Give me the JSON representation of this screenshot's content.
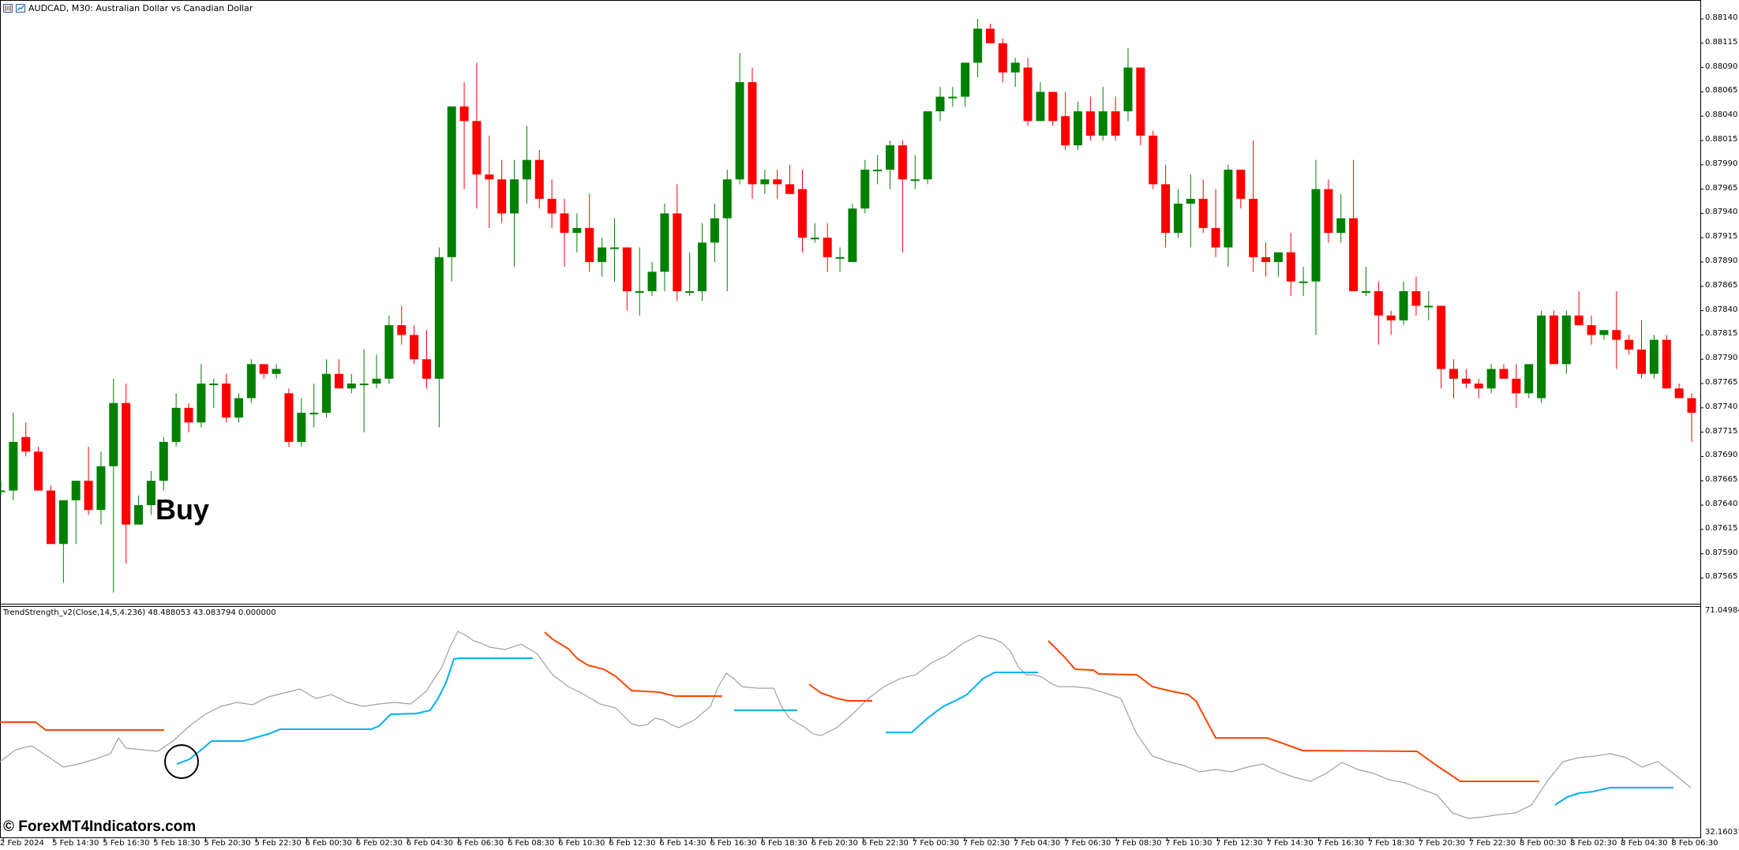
{
  "chart_title": "AUDCAD, M30:  Australian Dollar vs Canadian Dollar",
  "indicator_label": "TrendStrength_v2(Close,14,5,4.236) 48.488053 43.083794 0.000000",
  "annotation_text": "Buy",
  "watermark": "© ForexMT4Indicators.com",
  "price_axis": [
    "0.88140",
    "0.88115",
    "0.88090",
    "0.88065",
    "0.88040",
    "0.88015",
    "0.87990",
    "0.87965",
    "0.87940",
    "0.87915",
    "0.87890",
    "0.87865",
    "0.87840",
    "0.87815",
    "0.87790",
    "0.87765",
    "0.87740",
    "0.87715",
    "0.87690",
    "0.87665",
    "0.87640",
    "0.87615",
    "0.87590",
    "0.87565"
  ],
  "indicator_axis": [
    "71.049846",
    "32.160370"
  ],
  "time_axis": [
    "2 Feb 2024",
    "5 Feb 14:30",
    "5 Feb 16:30",
    "5 Feb 18:30",
    "5 Feb 20:30",
    "5 Feb 22:30",
    "6 Feb 00:30",
    "6 Feb 02:30",
    "6 Feb 04:30",
    "6 Feb 06:30",
    "6 Feb 08:30",
    "6 Feb 10:30",
    "6 Feb 12:30",
    "6 Feb 14:30",
    "6 Feb 16:30",
    "6 Feb 18:30",
    "6 Feb 20:30",
    "6 Feb 22:30",
    "7 Feb 00:30",
    "7 Feb 02:30",
    "7 Feb 04:30",
    "7 Feb 06:30",
    "7 Feb 08:30",
    "7 Feb 10:30",
    "7 Feb 12:30",
    "7 Feb 14:30",
    "7 Feb 16:30",
    "7 Feb 18:30",
    "7 Feb 20:30",
    "7 Feb 22:30",
    "8 Feb 00:30",
    "8 Feb 02:30",
    "8 Feb 04:30",
    "8 Feb 06:30"
  ],
  "colors": {
    "bull": "#008000",
    "bear": "#ff0000",
    "up_line": "#00b0f0",
    "down_line": "#ff4500",
    "strength_line": "#a0a0a0",
    "background": "#ffffff"
  },
  "chart_data": {
    "type": "candlestick",
    "symbol": "AUDCAD",
    "timeframe": "M30",
    "price_range": [
      0.8755,
      0.8815
    ],
    "candles": [
      {
        "o": 0.87655,
        "h": 0.87665,
        "l": 0.8765,
        "c": 0.87655
      },
      {
        "o": 0.87655,
        "h": 0.87735,
        "l": 0.87645,
        "c": 0.87705
      },
      {
        "o": 0.8771,
        "h": 0.87725,
        "l": 0.8769,
        "c": 0.87695
      },
      {
        "o": 0.87695,
        "h": 0.877,
        "l": 0.87655,
        "c": 0.87655
      },
      {
        "o": 0.87655,
        "h": 0.8766,
        "l": 0.876,
        "c": 0.876
      },
      {
        "o": 0.876,
        "h": 0.8764,
        "l": 0.8756,
        "c": 0.87645
      },
      {
        "o": 0.87645,
        "h": 0.87665,
        "l": 0.876,
        "c": 0.87665
      },
      {
        "o": 0.87665,
        "h": 0.877,
        "l": 0.8763,
        "c": 0.87635
      },
      {
        "o": 0.87635,
        "h": 0.87695,
        "l": 0.8762,
        "c": 0.8768
      },
      {
        "o": 0.8768,
        "h": 0.8777,
        "l": 0.8755,
        "c": 0.87745
      },
      {
        "o": 0.87745,
        "h": 0.87765,
        "l": 0.8758,
        "c": 0.8762
      },
      {
        "o": 0.8762,
        "h": 0.8765,
        "l": 0.8762,
        "c": 0.8764
      },
      {
        "o": 0.8764,
        "h": 0.87675,
        "l": 0.8763,
        "c": 0.87665
      },
      {
        "o": 0.87665,
        "h": 0.8771,
        "l": 0.87655,
        "c": 0.87705
      },
      {
        "o": 0.87705,
        "h": 0.87755,
        "l": 0.877,
        "c": 0.8774
      },
      {
        "o": 0.8774,
        "h": 0.87745,
        "l": 0.87715,
        "c": 0.87725
      },
      {
        "o": 0.87725,
        "h": 0.87785,
        "l": 0.8772,
        "c": 0.87765
      },
      {
        "o": 0.87765,
        "h": 0.8777,
        "l": 0.8774,
        "c": 0.87765
      },
      {
        "o": 0.87765,
        "h": 0.87775,
        "l": 0.87725,
        "c": 0.8773
      },
      {
        "o": 0.8773,
        "h": 0.87755,
        "l": 0.87725,
        "c": 0.8775
      },
      {
        "o": 0.8775,
        "h": 0.8779,
        "l": 0.87745,
        "c": 0.87785
      },
      {
        "o": 0.87785,
        "h": 0.87785,
        "l": 0.8777,
        "c": 0.87775
      },
      {
        "o": 0.87775,
        "h": 0.87785,
        "l": 0.8777,
        "c": 0.8778
      },
      {
        "o": 0.87755,
        "h": 0.8776,
        "l": 0.877,
        "c": 0.87705
      },
      {
        "o": 0.87705,
        "h": 0.8775,
        "l": 0.877,
        "c": 0.87735
      },
      {
        "o": 0.87735,
        "h": 0.87765,
        "l": 0.8772,
        "c": 0.87735
      },
      {
        "o": 0.87735,
        "h": 0.8779,
        "l": 0.8773,
        "c": 0.87775
      },
      {
        "o": 0.87775,
        "h": 0.8779,
        "l": 0.87765,
        "c": 0.8776
      },
      {
        "o": 0.8776,
        "h": 0.87775,
        "l": 0.87755,
        "c": 0.87765
      },
      {
        "o": 0.87765,
        "h": 0.878,
        "l": 0.87715,
        "c": 0.87765
      },
      {
        "o": 0.87765,
        "h": 0.87795,
        "l": 0.8776,
        "c": 0.8777
      },
      {
        "o": 0.8777,
        "h": 0.87835,
        "l": 0.87765,
        "c": 0.87825
      },
      {
        "o": 0.87825,
        "h": 0.87845,
        "l": 0.87805,
        "c": 0.87815
      },
      {
        "o": 0.87815,
        "h": 0.87825,
        "l": 0.87785,
        "c": 0.8779
      },
      {
        "o": 0.8779,
        "h": 0.8782,
        "l": 0.8776,
        "c": 0.8777
      },
      {
        "o": 0.8777,
        "h": 0.87905,
        "l": 0.8772,
        "c": 0.87895
      },
      {
        "o": 0.87895,
        "h": 0.8805,
        "l": 0.8787,
        "c": 0.8805
      },
      {
        "o": 0.8805,
        "h": 0.88075,
        "l": 0.87965,
        "c": 0.88035
      },
      {
        "o": 0.88035,
        "h": 0.88095,
        "l": 0.87945,
        "c": 0.8798
      },
      {
        "o": 0.8798,
        "h": 0.8802,
        "l": 0.87925,
        "c": 0.87975
      },
      {
        "o": 0.87975,
        "h": 0.87995,
        "l": 0.8793,
        "c": 0.8794
      },
      {
        "o": 0.8794,
        "h": 0.87995,
        "l": 0.87885,
        "c": 0.87975
      },
      {
        "o": 0.87975,
        "h": 0.8803,
        "l": 0.8795,
        "c": 0.87995
      },
      {
        "o": 0.87995,
        "h": 0.88005,
        "l": 0.87945,
        "c": 0.87955
      },
      {
        "o": 0.87955,
        "h": 0.87975,
        "l": 0.87925,
        "c": 0.8794
      },
      {
        "o": 0.8794,
        "h": 0.87955,
        "l": 0.87885,
        "c": 0.8792
      },
      {
        "o": 0.8792,
        "h": 0.8794,
        "l": 0.879,
        "c": 0.87925
      },
      {
        "o": 0.87925,
        "h": 0.8796,
        "l": 0.8788,
        "c": 0.8789
      },
      {
        "o": 0.8789,
        "h": 0.87915,
        "l": 0.87875,
        "c": 0.87905
      },
      {
        "o": 0.87905,
        "h": 0.87935,
        "l": 0.8787,
        "c": 0.87905
      },
      {
        "o": 0.87905,
        "h": 0.87905,
        "l": 0.8784,
        "c": 0.8786
      },
      {
        "o": 0.8786,
        "h": 0.87905,
        "l": 0.87835,
        "c": 0.8786
      },
      {
        "o": 0.8786,
        "h": 0.8789,
        "l": 0.87855,
        "c": 0.8788
      },
      {
        "o": 0.8788,
        "h": 0.8795,
        "l": 0.8786,
        "c": 0.8794
      },
      {
        "o": 0.8794,
        "h": 0.8797,
        "l": 0.8785,
        "c": 0.8786
      },
      {
        "o": 0.8786,
        "h": 0.879,
        "l": 0.87855,
        "c": 0.8786
      },
      {
        "o": 0.8786,
        "h": 0.8793,
        "l": 0.8785,
        "c": 0.8791
      },
      {
        "o": 0.8791,
        "h": 0.8795,
        "l": 0.8789,
        "c": 0.87935
      },
      {
        "o": 0.87935,
        "h": 0.87985,
        "l": 0.8786,
        "c": 0.87975
      },
      {
        "o": 0.87975,
        "h": 0.88105,
        "l": 0.8797,
        "c": 0.88075
      },
      {
        "o": 0.88075,
        "h": 0.8809,
        "l": 0.87955,
        "c": 0.8797
      },
      {
        "o": 0.8797,
        "h": 0.87985,
        "l": 0.8796,
        "c": 0.87975
      },
      {
        "o": 0.87975,
        "h": 0.87985,
        "l": 0.87955,
        "c": 0.8797
      },
      {
        "o": 0.8797,
        "h": 0.8799,
        "l": 0.8796,
        "c": 0.8796
      },
      {
        "o": 0.87965,
        "h": 0.87985,
        "l": 0.879,
        "c": 0.87915
      },
      {
        "o": 0.87915,
        "h": 0.8793,
        "l": 0.8791,
        "c": 0.87915
      },
      {
        "o": 0.87915,
        "h": 0.8793,
        "l": 0.8788,
        "c": 0.87895
      },
      {
        "o": 0.87895,
        "h": 0.87905,
        "l": 0.8788,
        "c": 0.87895
      },
      {
        "o": 0.8789,
        "h": 0.8795,
        "l": 0.8789,
        "c": 0.87945
      },
      {
        "o": 0.87945,
        "h": 0.87995,
        "l": 0.8794,
        "c": 0.87985
      },
      {
        "o": 0.87985,
        "h": 0.88,
        "l": 0.8797,
        "c": 0.87985
      },
      {
        "o": 0.87985,
        "h": 0.88015,
        "l": 0.87965,
        "c": 0.8801
      },
      {
        "o": 0.8801,
        "h": 0.88015,
        "l": 0.879,
        "c": 0.87975
      },
      {
        "o": 0.87975,
        "h": 0.88,
        "l": 0.87965,
        "c": 0.87975
      },
      {
        "o": 0.87975,
        "h": 0.88045,
        "l": 0.8797,
        "c": 0.88045
      },
      {
        "o": 0.88045,
        "h": 0.8807,
        "l": 0.88035,
        "c": 0.8806
      },
      {
        "o": 0.8806,
        "h": 0.8807,
        "l": 0.8805,
        "c": 0.8806
      },
      {
        "o": 0.8806,
        "h": 0.88095,
        "l": 0.8805,
        "c": 0.88095
      },
      {
        "o": 0.88095,
        "h": 0.8814,
        "l": 0.8808,
        "c": 0.8813
      },
      {
        "o": 0.8813,
        "h": 0.88135,
        "l": 0.88115,
        "c": 0.88115
      },
      {
        "o": 0.88115,
        "h": 0.8812,
        "l": 0.88075,
        "c": 0.88085
      },
      {
        "o": 0.88085,
        "h": 0.881,
        "l": 0.8807,
        "c": 0.88095
      },
      {
        "o": 0.8809,
        "h": 0.881,
        "l": 0.8803,
        "c": 0.88035
      },
      {
        "o": 0.88035,
        "h": 0.88075,
        "l": 0.88035,
        "c": 0.88065
      },
      {
        "o": 0.88065,
        "h": 0.88065,
        "l": 0.8803,
        "c": 0.88035
      },
      {
        "o": 0.8804,
        "h": 0.88065,
        "l": 0.88005,
        "c": 0.8801
      },
      {
        "o": 0.8801,
        "h": 0.88055,
        "l": 0.88005,
        "c": 0.88045
      },
      {
        "o": 0.88045,
        "h": 0.8806,
        "l": 0.88015,
        "c": 0.8802
      },
      {
        "o": 0.8802,
        "h": 0.8807,
        "l": 0.88015,
        "c": 0.88045
      },
      {
        "o": 0.88045,
        "h": 0.8806,
        "l": 0.88015,
        "c": 0.8802
      },
      {
        "o": 0.88045,
        "h": 0.8811,
        "l": 0.88035,
        "c": 0.8809
      },
      {
        "o": 0.8809,
        "h": 0.8809,
        "l": 0.8801,
        "c": 0.8802
      },
      {
        "o": 0.8802,
        "h": 0.88025,
        "l": 0.87965,
        "c": 0.8797
      },
      {
        "o": 0.8797,
        "h": 0.8799,
        "l": 0.87905,
        "c": 0.8792
      },
      {
        "o": 0.8792,
        "h": 0.87965,
        "l": 0.87915,
        "c": 0.8795
      },
      {
        "o": 0.8795,
        "h": 0.8798,
        "l": 0.87905,
        "c": 0.87955
      },
      {
        "o": 0.87955,
        "h": 0.87975,
        "l": 0.8792,
        "c": 0.87925
      },
      {
        "o": 0.87925,
        "h": 0.87965,
        "l": 0.87895,
        "c": 0.87905
      },
      {
        "o": 0.87905,
        "h": 0.8799,
        "l": 0.87885,
        "c": 0.87985
      },
      {
        "o": 0.87985,
        "h": 0.87985,
        "l": 0.87945,
        "c": 0.87955
      },
      {
        "o": 0.87955,
        "h": 0.88015,
        "l": 0.8788,
        "c": 0.87895
      },
      {
        "o": 0.87895,
        "h": 0.8791,
        "l": 0.87875,
        "c": 0.8789
      },
      {
        "o": 0.8789,
        "h": 0.879,
        "l": 0.87875,
        "c": 0.879
      },
      {
        "o": 0.879,
        "h": 0.8792,
        "l": 0.87855,
        "c": 0.8787
      },
      {
        "o": 0.8787,
        "h": 0.87885,
        "l": 0.87855,
        "c": 0.8787
      },
      {
        "o": 0.8787,
        "h": 0.87995,
        "l": 0.87815,
        "c": 0.87965
      },
      {
        "o": 0.87965,
        "h": 0.87975,
        "l": 0.8791,
        "c": 0.8792
      },
      {
        "o": 0.8792,
        "h": 0.8796,
        "l": 0.8791,
        "c": 0.87935
      },
      {
        "o": 0.87935,
        "h": 0.87995,
        "l": 0.8786,
        "c": 0.8786
      },
      {
        "o": 0.8786,
        "h": 0.87885,
        "l": 0.87855,
        "c": 0.8786
      },
      {
        "o": 0.8786,
        "h": 0.8787,
        "l": 0.87805,
        "c": 0.87835
      },
      {
        "o": 0.87835,
        "h": 0.8784,
        "l": 0.87815,
        "c": 0.8783
      },
      {
        "o": 0.8783,
        "h": 0.8787,
        "l": 0.87825,
        "c": 0.8786
      },
      {
        "o": 0.8786,
        "h": 0.87875,
        "l": 0.87835,
        "c": 0.87845
      },
      {
        "o": 0.87845,
        "h": 0.8786,
        "l": 0.8783,
        "c": 0.87845
      },
      {
        "o": 0.87845,
        "h": 0.87845,
        "l": 0.8776,
        "c": 0.8778
      },
      {
        "o": 0.8778,
        "h": 0.8779,
        "l": 0.8775,
        "c": 0.8777
      },
      {
        "o": 0.8777,
        "h": 0.8778,
        "l": 0.8776,
        "c": 0.87765
      },
      {
        "o": 0.87765,
        "h": 0.8777,
        "l": 0.8775,
        "c": 0.8776
      },
      {
        "o": 0.8776,
        "h": 0.87785,
        "l": 0.87755,
        "c": 0.8778
      },
      {
        "o": 0.8778,
        "h": 0.87785,
        "l": 0.8777,
        "c": 0.8777
      },
      {
        "o": 0.8777,
        "h": 0.87785,
        "l": 0.8774,
        "c": 0.87755
      },
      {
        "o": 0.87755,
        "h": 0.8778,
        "l": 0.8775,
        "c": 0.87785
      },
      {
        "o": 0.8775,
        "h": 0.8784,
        "l": 0.87745,
        "c": 0.87835
      },
      {
        "o": 0.87835,
        "h": 0.8784,
        "l": 0.8779,
        "c": 0.87785
      },
      {
        "o": 0.87785,
        "h": 0.8784,
        "l": 0.87775,
        "c": 0.87835
      },
      {
        "o": 0.87835,
        "h": 0.8786,
        "l": 0.87825,
        "c": 0.87825
      },
      {
        "o": 0.87825,
        "h": 0.87835,
        "l": 0.87805,
        "c": 0.87815
      },
      {
        "o": 0.87815,
        "h": 0.8782,
        "l": 0.8781,
        "c": 0.8782
      },
      {
        "o": 0.8782,
        "h": 0.8786,
        "l": 0.8778,
        "c": 0.8781
      },
      {
        "o": 0.8781,
        "h": 0.87815,
        "l": 0.87795,
        "c": 0.878
      },
      {
        "o": 0.878,
        "h": 0.8783,
        "l": 0.8777,
        "c": 0.87775
      },
      {
        "o": 0.87775,
        "h": 0.87815,
        "l": 0.8777,
        "c": 0.8781
      },
      {
        "o": 0.8781,
        "h": 0.87815,
        "l": 0.8776,
        "c": 0.8776
      },
      {
        "o": 0.8776,
        "h": 0.87765,
        "l": 0.8775,
        "c": 0.8775
      },
      {
        "o": 0.8775,
        "h": 0.87755,
        "l": 0.87705,
        "c": 0.87735
      }
    ],
    "indicator": {
      "name": "TrendStrength_v2",
      "params": "Close,14,5,4.236",
      "values": [
        48.488053,
        43.083794,
        0.0
      ],
      "range": [
        32.16037,
        71.049846
      ]
    }
  }
}
